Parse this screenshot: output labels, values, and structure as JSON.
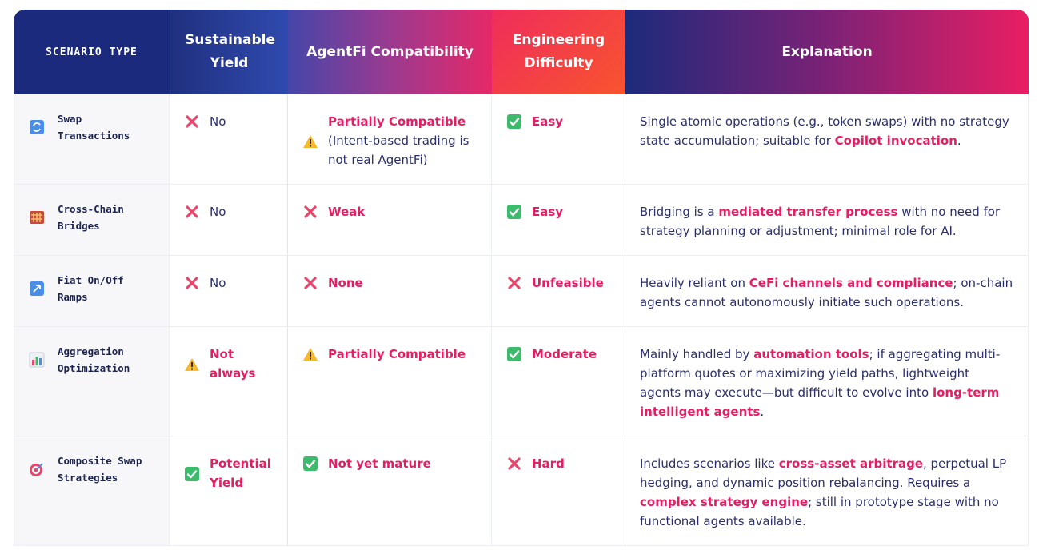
{
  "header": {
    "columns": [
      "SCENARIO TYPE",
      "Sustainable Yield",
      "AgentFi Compatibility",
      "Engineering Difficulty",
      "Explanation"
    ]
  },
  "table": {
    "rows": [
      {
        "scenario": "Swap Transactions",
        "sustainable_yield": [
          "No"
        ],
        "agentfi_compatibility": [
          "Partially Compatible",
          "(Intent-based trading is not real AgentFi)"
        ],
        "engineering_difficulty": [
          "Easy"
        ],
        "explanation": [
          "Single atomic operations (e.g., token swaps) with no strategy state accumulation; suitable for ",
          "Copilot invocation",
          "."
        ]
      },
      {
        "scenario": "Cross-Chain Bridges",
        "sustainable_yield": [
          "No"
        ],
        "agentfi_compatibility": [
          "Weak"
        ],
        "engineering_difficulty": [
          "Easy"
        ],
        "explanation": [
          "Bridging is a ",
          "mediated transfer process",
          " with no need for strategy planning or adjustment; minimal role for AI."
        ]
      },
      {
        "scenario": "Fiat On/Off Ramps",
        "sustainable_yield": [
          "No"
        ],
        "agentfi_compatibility": [
          "None"
        ],
        "engineering_difficulty": [
          "Unfeasible"
        ],
        "explanation": [
          "Heavily reliant on ",
          "CeFi channels and compliance",
          "; on-chain agents cannot autonomously initiate such operations."
        ]
      },
      {
        "scenario": "Aggregation Optimization",
        "sustainable_yield": [
          "Not always"
        ],
        "agentfi_compatibility": [
          "Partially Compatible"
        ],
        "engineering_difficulty": [
          "Moderate"
        ],
        "explanation": [
          "Mainly handled by ",
          "automation tools",
          "; if aggregating multi-platform quotes or maximizing yield paths, lightweight agents may execute—but difficult to evolve into ",
          "long-term intelligent agents",
          "."
        ]
      },
      {
        "scenario": "Composite Swap Strategies",
        "sustainable_yield": [
          "Potential Yield"
        ],
        "agentfi_compatibility": [
          "Not yet mature"
        ],
        "engineering_difficulty": [
          "Hard"
        ],
        "explanation": [
          "Includes scenarios like ",
          "cross-asset arbitrage",
          ", perpetual LP hedging, and dynamic position rebalancing. Requires a ",
          "complex strategy engine",
          "; still in prototype stage with no functional agents available."
        ]
      }
    ]
  }
}
